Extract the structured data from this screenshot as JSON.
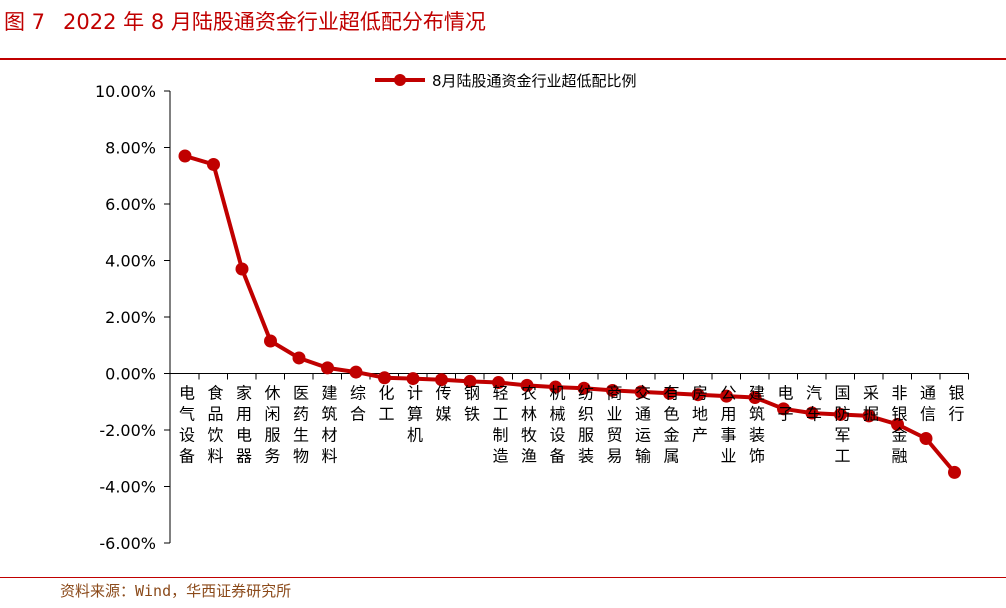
{
  "header": {
    "figure_number": "图 7",
    "title": "2022 年 8 月陆股通资金行业超低配分布情况"
  },
  "footer": {
    "source": "资料来源：Wind，华西证券研究所"
  },
  "colors": {
    "accent": "#c00000",
    "series": "#c00000",
    "source_text": "#8b4a1a"
  },
  "chart_data": {
    "type": "line",
    "title": "",
    "xlabel": "",
    "ylabel": "",
    "ylim": [
      -6,
      10
    ],
    "yticks": [
      10,
      8,
      6,
      4,
      2,
      0,
      -2,
      -4,
      -6
    ],
    "ytick_labels": [
      "10.00%",
      "8.00%",
      "6.00%",
      "4.00%",
      "2.00%",
      "0.00%",
      "-2.00%",
      "-4.00%",
      "-6.00%"
    ],
    "legend_placement": "top",
    "grid": false,
    "categories": [
      "电气设备",
      "食品饮料",
      "家用电器",
      "休闲服务",
      "医药生物",
      "建筑材料",
      "综合",
      "化工",
      "计算机",
      "传媒",
      "钢铁",
      "轻工制造",
      "农林牧渔",
      "机械设备",
      "纺织服装",
      "商业贸易",
      "交通运输",
      "有色金属",
      "房地产",
      "公用事业",
      "建筑装饰",
      "电子",
      "汽车",
      "国防军工",
      "采掘",
      "非银金融",
      "通信",
      "银行"
    ],
    "series": [
      {
        "name": "8月陆股通资金行业超低配比例",
        "values": [
          7.7,
          7.4,
          3.7,
          1.15,
          0.55,
          0.2,
          0.05,
          -0.15,
          -0.18,
          -0.22,
          -0.28,
          -0.32,
          -0.42,
          -0.48,
          -0.52,
          -0.6,
          -0.65,
          -0.7,
          -0.75,
          -0.8,
          -0.85,
          -1.25,
          -1.4,
          -1.45,
          -1.5,
          -1.8,
          -2.3,
          -3.5
        ]
      }
    ]
  }
}
